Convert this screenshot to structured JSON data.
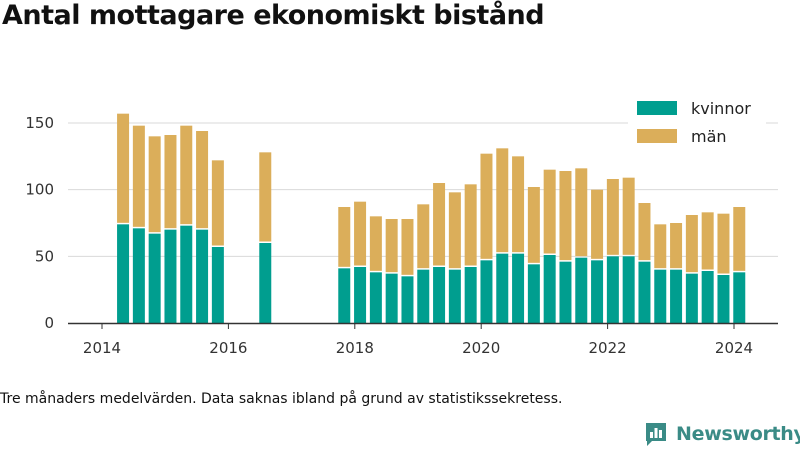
{
  "title": "Antal mottagare ekonomiskt bistånd",
  "note": "Tre månaders medelvärden. Data saknas ibland på grund av statistikssekretess.",
  "brand": {
    "name": "Newsworthy",
    "color": "#3a8b86"
  },
  "chart_data": {
    "type": "bar",
    "stacked": true,
    "x_ticks": [
      "2014",
      "2016",
      "2018",
      "2020",
      "2022",
      "2024"
    ],
    "y_ticks": [
      0,
      50,
      100,
      150
    ],
    "ylim": [
      0,
      160
    ],
    "grid": true,
    "legend_position": "top-right",
    "colors": {
      "kvinnor": "#009e8f",
      "män": "#dbae5a"
    },
    "series": [
      {
        "name": "kvinnor",
        "values": [
          74,
          71,
          67,
          70,
          73,
          70,
          57,
          60,
          41,
          42,
          38,
          37,
          35,
          40,
          42,
          40,
          42,
          47,
          52,
          52,
          44,
          51,
          46,
          49,
          47,
          50,
          50,
          46,
          40,
          40,
          37,
          39,
          36,
          38
        ]
      },
      {
        "name": "män",
        "values": [
          83,
          77,
          73,
          71,
          75,
          74,
          65,
          68,
          46,
          49,
          42,
          41,
          43,
          49,
          63,
          58,
          62,
          80,
          79,
          73,
          58,
          64,
          68,
          67,
          53,
          58,
          59,
          44,
          34,
          35,
          44,
          44,
          46,
          49
        ]
      }
    ],
    "x": [
      "2014-05",
      "2014-08",
      "2014-11",
      "2015-02",
      "2015-05",
      "2015-08",
      "2015-11",
      "2016-08",
      "2017-11",
      "2018-02",
      "2018-05",
      "2018-08",
      "2018-11",
      "2019-02",
      "2019-05",
      "2019-08",
      "2019-11",
      "2020-02",
      "2020-05",
      "2020-08",
      "2020-11",
      "2021-02",
      "2021-05",
      "2021-08",
      "2021-11",
      "2022-02",
      "2022-05",
      "2022-08",
      "2022-11",
      "2023-02",
      "2023-05",
      "2023-08",
      "2023-11",
      "2024-02"
    ]
  }
}
